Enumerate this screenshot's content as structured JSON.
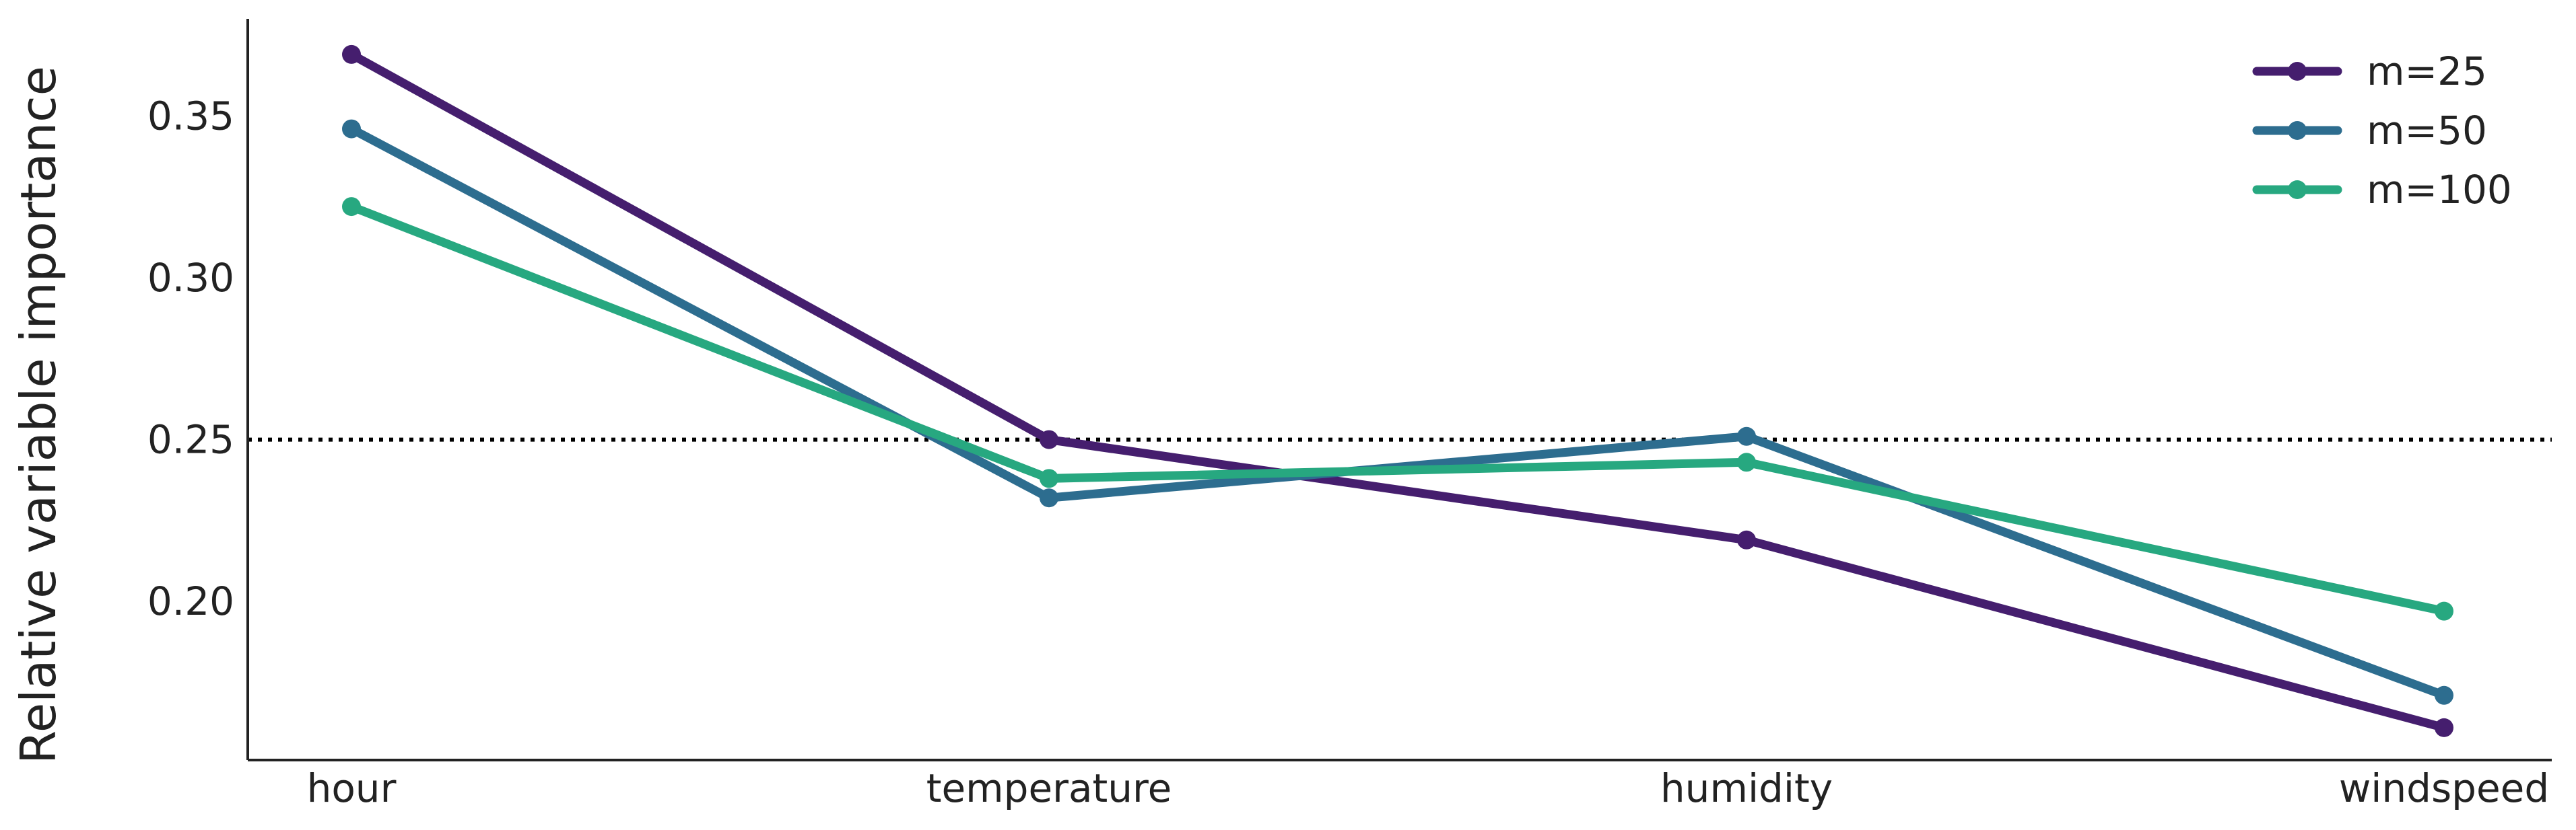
{
  "chart_data": {
    "type": "line",
    "title": "",
    "xlabel": "",
    "ylabel": "Relative variable importance",
    "categories": [
      "hour",
      "temperature",
      "humidity",
      "windspeed"
    ],
    "ylim": [
      0.151,
      0.38
    ],
    "yticks": [
      0.2,
      0.25,
      0.3,
      0.35
    ],
    "ytick_labels": [
      "0.20",
      "0.25",
      "0.30",
      "0.35"
    ],
    "reference_line": {
      "y": 0.25,
      "style": "dotted",
      "color": "#000000"
    },
    "grid": false,
    "legend_position": "top-right",
    "series": [
      {
        "name": "m=25",
        "color": "#451e6e",
        "values": [
          0.369,
          0.25,
          0.219,
          0.161
        ]
      },
      {
        "name": "m=50",
        "color": "#2d6d8f",
        "values": [
          0.346,
          0.232,
          0.251,
          0.171
        ]
      },
      {
        "name": "m=100",
        "color": "#27a880",
        "values": [
          0.322,
          0.238,
          0.243,
          0.197
        ]
      }
    ]
  }
}
